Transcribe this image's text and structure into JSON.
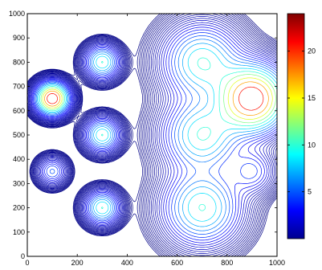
{
  "chart_data": {
    "type": "contour",
    "xlim": [
      0,
      1000
    ],
    "ylim": [
      0,
      1000
    ],
    "xticks": [
      "0",
      "200",
      "400",
      "600",
      "800",
      "1000"
    ],
    "yticks": [
      "0",
      "100",
      "200",
      "300",
      "400",
      "500",
      "600",
      "700",
      "800",
      "900",
      "1000"
    ],
    "colorbar": {
      "range": [
        0,
        24
      ],
      "ticks": [
        "5",
        "10",
        "15",
        "20"
      ]
    },
    "peaks": [
      {
        "x": 100,
        "y": 650,
        "peak": 24,
        "spread": 38
      },
      {
        "x": 100,
        "y": 350,
        "peak": 5,
        "spread": 34
      },
      {
        "x": 300,
        "y": 800,
        "peak": 10,
        "spread": 40
      },
      {
        "x": 300,
        "y": 500,
        "peak": 10,
        "spread": 40
      },
      {
        "x": 300,
        "y": 200,
        "peak": 10,
        "spread": 40
      },
      {
        "x": 700,
        "y": 800,
        "peak": 10,
        "spread": 90
      },
      {
        "x": 700,
        "y": 500,
        "peak": 10,
        "spread": 90
      },
      {
        "x": 700,
        "y": 200,
        "peak": 10,
        "spread": 90
      },
      {
        "x": 900,
        "y": 650,
        "peak": 24,
        "spread": 80
      },
      {
        "x": 900,
        "y": 350,
        "peak": 4,
        "spread": 55
      }
    ],
    "grid": false,
    "legend": "colorbar-right",
    "colors": {
      "low": "#00008f",
      "mid": "#00ffff",
      "high": "#800000"
    }
  }
}
